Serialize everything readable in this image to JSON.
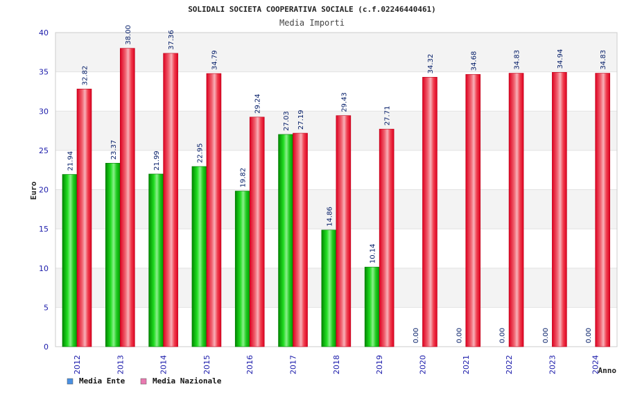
{
  "chart_data": {
    "type": "bar",
    "title": "SOLIDALI SOCIETA COOPERATIVA SOCIALE (c.f.02246440461)",
    "subtitle": "Media Importi",
    "xlabel": "Anno",
    "ylabel": "Euro",
    "ylim": [
      0,
      40
    ],
    "yticks": [
      "0",
      "5",
      "10",
      "15",
      "20",
      "25",
      "30",
      "35",
      "40"
    ],
    "categories": [
      "2012",
      "2013",
      "2014",
      "2015",
      "2016",
      "2017",
      "2018",
      "2019",
      "2020",
      "2021",
      "2022",
      "2023",
      "2024"
    ],
    "series": [
      {
        "name": "Media Ente",
        "color": "#00c000",
        "values": [
          21.94,
          23.37,
          21.99,
          22.95,
          19.82,
          27.03,
          14.86,
          10.14,
          0,
          0,
          0,
          0,
          0
        ],
        "labels": [
          "21.94",
          "23.37",
          "21.99",
          "22.95",
          "19.82",
          "27.03",
          "14.86",
          "10.14",
          "0.00",
          "0.00",
          "0.00",
          "0.00",
          "0.00"
        ]
      },
      {
        "name": "Media Nazionale",
        "color": "#e8102a",
        "values": [
          32.82,
          38.0,
          37.36,
          34.79,
          29.24,
          27.19,
          29.43,
          27.71,
          34.32,
          34.68,
          34.83,
          34.94,
          34.83
        ],
        "labels": [
          "32.82",
          "38.00",
          "37.36",
          "34.79",
          "29.24",
          "27.19",
          "29.43",
          "27.71",
          "34.32",
          "34.68",
          "34.83",
          "34.94",
          "34.83"
        ]
      }
    ],
    "legend": [
      {
        "label": "Media Ente",
        "color": "#4a90e2"
      },
      {
        "label": "Media Nazionale",
        "color": "#e87ab0"
      }
    ],
    "grid": true,
    "legend_position": "bottom-left"
  }
}
